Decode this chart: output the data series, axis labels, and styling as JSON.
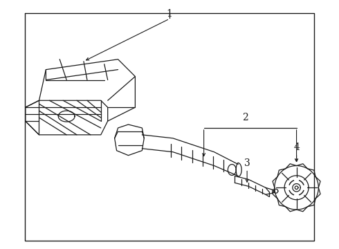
{
  "bg_color": "#ffffff",
  "line_color": "#1a1a1a",
  "border": [
    0.07,
    0.05,
    0.93,
    0.97
  ],
  "label_fontsize": 10,
  "lw": 0.9
}
